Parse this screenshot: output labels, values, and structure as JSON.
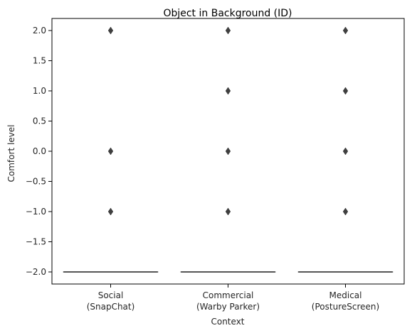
{
  "chart_data": {
    "type": "box",
    "title": "Object in Background (ID)",
    "xlabel": "Context",
    "ylabel": "Comfort level",
    "categories": [
      {
        "line1": "Social",
        "line2": "(SnapChat)"
      },
      {
        "line1": "Commercial",
        "line2": "(Warby Parker)"
      },
      {
        "line1": "Medical",
        "line2": "(PostureScreen)"
      }
    ],
    "ylim": [
      -2.2,
      2.2
    ],
    "yticks": [
      2.0,
      1.5,
      1.0,
      0.5,
      0.0,
      -0.5,
      -1.0,
      -1.5,
      -2.0
    ],
    "ytick_labels": [
      "2.0",
      "1.5",
      "1.0",
      "0.5",
      "0.0",
      "−0.5",
      "−1.0",
      "−1.5",
      "−2.0"
    ],
    "boxes": [
      {
        "category": "Social\n(SnapChat)",
        "q1": -2.0,
        "median": -2.0,
        "q3": -2.0,
        "whisker_low": -2.0,
        "whisker_high": -2.0,
        "outliers": [
          2.0,
          0.0,
          -1.0
        ]
      },
      {
        "category": "Commercial\n(Warby Parker)",
        "q1": -2.0,
        "median": -2.0,
        "q3": -2.0,
        "whisker_low": -2.0,
        "whisker_high": -2.0,
        "outliers": [
          2.0,
          1.0,
          0.0,
          -1.0
        ]
      },
      {
        "category": "Medical\n(PostureScreen)",
        "q1": -2.0,
        "median": -2.0,
        "q3": -2.0,
        "whisker_low": -2.0,
        "whisker_high": -2.0,
        "outliers": [
          2.0,
          1.0,
          0.0,
          -1.0
        ]
      }
    ],
    "colors": {
      "box": "#3f3f3f",
      "outlier": "#3f3f3f",
      "axis": "#000000",
      "text": "#262626"
    },
    "grid": false
  }
}
